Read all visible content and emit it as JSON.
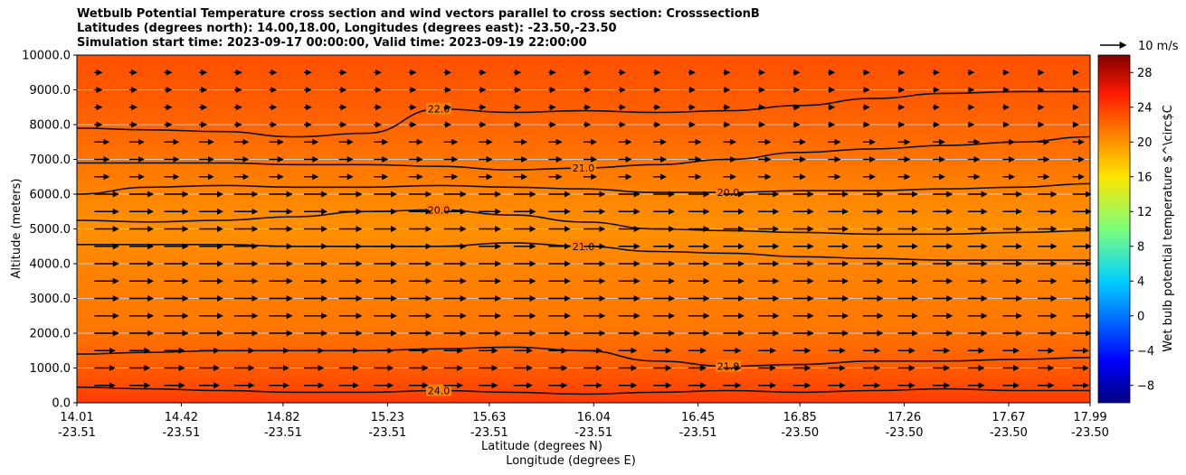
{
  "chart_data": {
    "type": "contour",
    "title_lines": [
      "Wetbulb Potential Temperature cross section and wind vectors parallel to cross section: CrosssectionB",
      "Latitudes (degrees north): 14.00,18.00, Longitudes (degrees east): -23.50,-23.50",
      "Simulation start time: 2023-09-17 00:00:00, Valid time: 2023-09-19 22:00:00"
    ],
    "ylabel": "Altitude (meters)",
    "xlabel_lat": "Latitude (degrees N)",
    "xlabel_lon": "Longitude (degrees E)",
    "ylim": [
      0,
      10000
    ],
    "y_ticks": [
      "0.0",
      "1000.0",
      "2000.0",
      "3000.0",
      "4000.0",
      "5000.0",
      "6000.0",
      "7000.0",
      "8000.0",
      "9000.0",
      "10000.0"
    ],
    "x_ticks": [
      {
        "lat": "14.01",
        "lon": "-23.51"
      },
      {
        "lat": "14.42",
        "lon": "-23.51"
      },
      {
        "lat": "14.82",
        "lon": "-23.51"
      },
      {
        "lat": "15.23",
        "lon": "-23.51"
      },
      {
        "lat": "15.63",
        "lon": "-23.51"
      },
      {
        "lat": "16.04",
        "lon": "-23.51"
      },
      {
        "lat": "16.45",
        "lon": "-23.51"
      },
      {
        "lat": "16.85",
        "lon": "-23.50"
      },
      {
        "lat": "17.26",
        "lon": "-23.50"
      },
      {
        "lat": "17.67",
        "lon": "-23.50"
      },
      {
        "lat": "17.99",
        "lon": "-23.50"
      }
    ],
    "contour_lines": [
      {
        "label": "22.0",
        "y": [
          7900,
          7850,
          7800,
          7650,
          7750,
          8450,
          8350,
          8400,
          8350,
          8400,
          8550,
          8750,
          8900,
          8950,
          8950
        ]
      },
      {
        "label": "21.0",
        "y": [
          6900,
          6900,
          6900,
          6850,
          6850,
          6800,
          6700,
          6750,
          6850,
          7000,
          7200,
          7300,
          7400,
          7500,
          7650
        ]
      },
      {
        "label": "20.0",
        "y": [
          6000,
          6200,
          6250,
          6200,
          6200,
          6250,
          6200,
          6150,
          6050,
          6050,
          6100,
          6100,
          6150,
          6200,
          6300
        ]
      },
      {
        "label": "20.0",
        "y": [
          5250,
          5200,
          5250,
          5350,
          5500,
          5550,
          5400,
          5200,
          5000,
          4950,
          4900,
          4850,
          4850,
          4900,
          4950
        ]
      },
      {
        "label": "21.0",
        "y": [
          4550,
          4550,
          4550,
          4500,
          4500,
          4500,
          4600,
          4500,
          4350,
          4300,
          4200,
          4150,
          4100,
          4100,
          4100
        ]
      },
      {
        "label": "21.0",
        "y": [
          1400,
          1450,
          1500,
          1500,
          1500,
          1550,
          1600,
          1500,
          1200,
          1050,
          1100,
          1200,
          1200,
          1250,
          1300
        ]
      },
      {
        "label": "24.0",
        "y": [
          450,
          400,
          350,
          300,
          300,
          350,
          300,
          250,
          300,
          350,
          300,
          350,
          400,
          350,
          350
        ]
      }
    ],
    "colorbar": {
      "label": "Wet bulb potential temperature $^\\circ$C",
      "range": [
        -10,
        30
      ],
      "ticks": [
        "28",
        "24",
        "20",
        "16",
        "12",
        "8",
        "4",
        "0",
        "−4",
        "−8"
      ],
      "tick_values": [
        28,
        24,
        20,
        16,
        12,
        8,
        4,
        0,
        -4,
        -8
      ]
    },
    "quiver_key": "10 m/s"
  }
}
